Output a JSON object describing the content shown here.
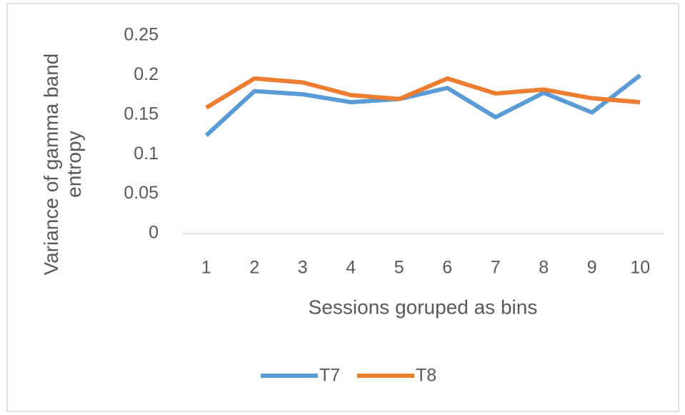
{
  "chart_data": {
    "type": "line",
    "y_label": "Variance of gamma band entropy",
    "x_label": "Sessions goruped as bins",
    "categories": [
      "1",
      "2",
      "3",
      "4",
      "5",
      "6",
      "7",
      "8",
      "9",
      "10"
    ],
    "series": [
      {
        "name": "T7",
        "color": "#5b9bd5",
        "values": [
          0.124,
          0.18,
          0.176,
          0.166,
          0.17,
          0.184,
          0.147,
          0.178,
          0.153,
          0.2
        ]
      },
      {
        "name": "T8",
        "color": "#ed7d31",
        "values": [
          0.159,
          0.196,
          0.191,
          0.175,
          0.17,
          0.196,
          0.177,
          0.182,
          0.171,
          0.166
        ]
      }
    ],
    "ylim": [
      0,
      0.25
    ],
    "yticks": [
      0,
      0.05,
      0.1,
      0.15,
      0.2,
      0.25
    ],
    "grid": false,
    "legend": "bottom"
  }
}
